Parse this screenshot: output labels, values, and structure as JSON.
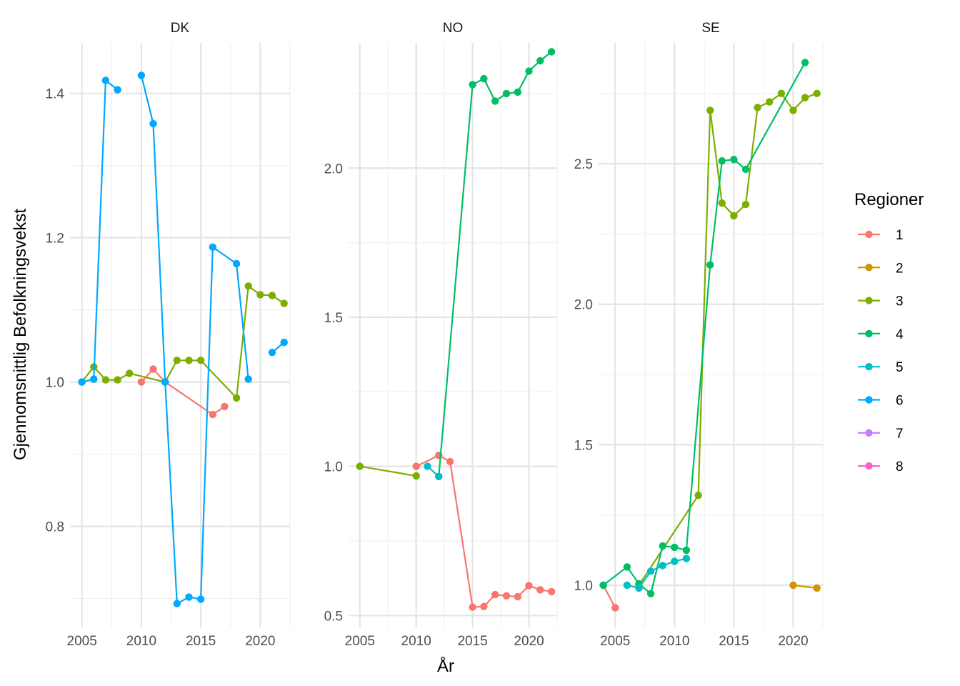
{
  "chart_data": {
    "type": "line",
    "xlabel": "År",
    "ylabel": "Gjennomsnittlig Befolkningsvekst",
    "legend": {
      "title": "Regioner",
      "position": "right",
      "entries": [
        {
          "label": "1",
          "color": "#F8766D"
        },
        {
          "label": "2",
          "color": "#CD9600"
        },
        {
          "label": "3",
          "color": "#7CAE00"
        },
        {
          "label": "4",
          "color": "#00BE67"
        },
        {
          "label": "5",
          "color": "#00BFC4"
        },
        {
          "label": "6",
          "color": "#00A9FF"
        },
        {
          "label": "7",
          "color": "#C77CFF"
        },
        {
          "label": "8",
          "color": "#FF61CC"
        }
      ]
    },
    "grid": true,
    "panels": [
      {
        "name": "DK",
        "xlim": [
          2004,
          2022.5
        ],
        "ylim": [
          0.66,
          1.47
        ],
        "x_ticks": [
          2005,
          2010,
          2015,
          2020
        ],
        "y_ticks": [
          0.8,
          1.0,
          1.2,
          1.4
        ],
        "y_tick_labels": [
          "0.8",
          "1.0",
          "1.2",
          "1.4"
        ],
        "series": [
          {
            "region": "1",
            "segments": [
              [
                [
                  2010,
                  1.0
                ],
                [
                  2011,
                  1.018
                ],
                [
                  2012,
                  1.0
                ],
                [
                  2016,
                  0.955
                ],
                [
                  2017,
                  0.966
                ]
              ]
            ]
          },
          {
            "region": "3",
            "segments": [
              [
                [
                  2005,
                  1.0
                ],
                [
                  2006,
                  1.021
                ],
                [
                  2007,
                  1.003
                ],
                [
                  2008,
                  1.003
                ],
                [
                  2009,
                  1.012
                ],
                [
                  2012,
                  1.0
                ],
                [
                  2013,
                  1.03
                ],
                [
                  2014,
                  1.03
                ],
                [
                  2015,
                  1.03
                ],
                [
                  2018,
                  0.978
                ],
                [
                  2019,
                  1.133
                ],
                [
                  2020,
                  1.121
                ],
                [
                  2021,
                  1.12
                ],
                [
                  2022,
                  1.109
                ]
              ]
            ]
          },
          {
            "region": "6",
            "segments": [
              [
                [
                  2005,
                  1.0
                ],
                [
                  2006,
                  1.004
                ],
                [
                  2007,
                  1.418
                ],
                [
                  2008,
                  1.405
                ]
              ],
              [
                [
                  2010,
                  1.425
                ],
                [
                  2011,
                  1.358
                ],
                [
                  2012,
                  1.0
                ],
                [
                  2013,
                  0.693
                ],
                [
                  2014,
                  0.702
                ],
                [
                  2015,
                  0.699
                ],
                [
                  2016,
                  1.187
                ],
                [
                  2018,
                  1.164
                ],
                [
                  2019,
                  1.004
                ]
              ],
              [
                [
                  2021,
                  1.041
                ],
                [
                  2022,
                  1.055
                ]
              ]
            ]
          }
        ]
      },
      {
        "name": "NO",
        "xlim": [
          2004,
          2022.5
        ],
        "ylim": [
          0.46,
          2.42
        ],
        "x_ticks": [
          2005,
          2010,
          2015,
          2020
        ],
        "y_ticks": [
          0.5,
          1.0,
          1.5,
          2.0
        ],
        "y_tick_labels": [
          "0.5",
          "1.0",
          "1.5",
          "2.0"
        ],
        "series": [
          {
            "region": "1",
            "segments": [
              [
                [
                  2010,
                  1.0
                ],
                [
                  2012,
                  1.037
                ],
                [
                  2013,
                  1.016
                ],
                [
                  2015,
                  0.528
                ],
                [
                  2016,
                  0.53
                ],
                [
                  2017,
                  0.57
                ],
                [
                  2018,
                  0.566
                ],
                [
                  2019,
                  0.563
                ],
                [
                  2020,
                  0.6
                ],
                [
                  2021,
                  0.586
                ],
                [
                  2022,
                  0.58
                ]
              ]
            ]
          },
          {
            "region": "3",
            "segments": [
              [
                [
                  2005,
                  1.0
                ],
                [
                  2010,
                  0.968
                ]
              ]
            ]
          },
          {
            "region": "4",
            "segments": [
              [
                [
                  2012,
                  0.966
                ],
                [
                  2015,
                  2.28
                ],
                [
                  2016,
                  2.3
                ],
                [
                  2017,
                  2.225
                ],
                [
                  2018,
                  2.25
                ],
                [
                  2019,
                  2.255
                ],
                [
                  2020,
                  2.325
                ],
                [
                  2021,
                  2.36
                ],
                [
                  2022,
                  2.39
                ]
              ]
            ]
          },
          {
            "region": "5",
            "segments": [
              [
                [
                  2011,
                  1.0
                ],
                [
                  2012,
                  0.966
                ]
              ]
            ]
          }
        ]
      },
      {
        "name": "SE",
        "xlim": [
          2003.6,
          2022.5
        ],
        "ylim": [
          0.85,
          2.93
        ],
        "x_ticks": [
          2005,
          2010,
          2015,
          2020
        ],
        "y_ticks": [
          1.0,
          1.5,
          2.0,
          2.5
        ],
        "y_tick_labels": [
          "1.0",
          "1.5",
          "2.0",
          "2.5"
        ],
        "series": [
          {
            "region": "1",
            "segments": [
              [
                [
                  2004,
                  1.0
                ],
                [
                  2005,
                  0.92
                ]
              ]
            ]
          },
          {
            "region": "2",
            "segments": [
              [
                [
                  2020,
                  1.0
                ],
                [
                  2022,
                  0.99
                ]
              ]
            ]
          },
          {
            "region": "3",
            "segments": [
              [
                [
                  2007,
                  1.0
                ],
                [
                  2012,
                  1.32
                ],
                [
                  2013,
                  2.69
                ],
                [
                  2014,
                  2.36
                ],
                [
                  2015,
                  2.315
                ],
                [
                  2016,
                  2.355
                ],
                [
                  2017,
                  2.7
                ],
                [
                  2018,
                  2.72
                ],
                [
                  2019,
                  2.75
                ],
                [
                  2020,
                  2.69
                ],
                [
                  2021,
                  2.735
                ],
                [
                  2022,
                  2.75
                ]
              ]
            ]
          },
          {
            "region": "4",
            "segments": [
              [
                [
                  2004,
                  1.0
                ],
                [
                  2006,
                  1.065
                ],
                [
                  2007,
                  1.005
                ],
                [
                  2008,
                  0.97
                ],
                [
                  2009,
                  1.14
                ],
                [
                  2010,
                  1.135
                ],
                [
                  2011,
                  1.125
                ],
                [
                  2013,
                  2.14
                ],
                [
                  2014,
                  2.51
                ],
                [
                  2015,
                  2.515
                ],
                [
                  2016,
                  2.48
                ],
                [
                  2021,
                  2.86
                ]
              ]
            ]
          },
          {
            "region": "5",
            "segments": [
              [
                [
                  2006,
                  1.0
                ],
                [
                  2007,
                  0.99
                ],
                [
                  2008,
                  1.05
                ],
                [
                  2009,
                  1.07
                ],
                [
                  2010,
                  1.085
                ],
                [
                  2011,
                  1.095
                ]
              ]
            ]
          }
        ]
      }
    ]
  }
}
